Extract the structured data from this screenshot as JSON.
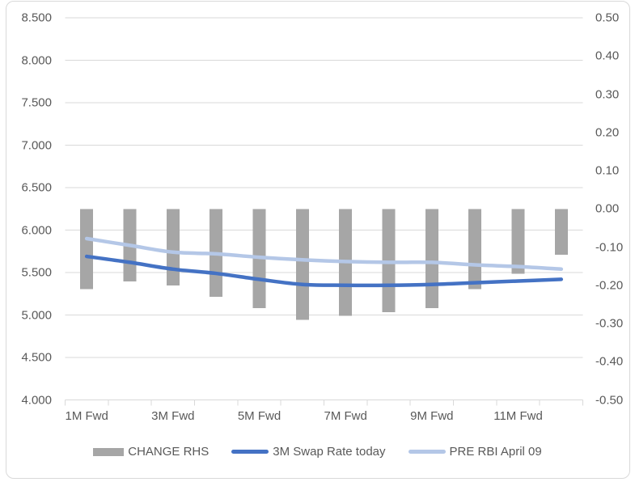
{
  "chart_data": {
    "type": "combo",
    "title": "",
    "n_points": 12,
    "x_tick_labels": [
      "1M Fwd",
      "3M Fwd",
      "5M Fwd",
      "7M Fwd",
      "9M Fwd",
      "11M Fwd"
    ],
    "x_labeled_category_indexes": [
      0,
      2,
      4,
      6,
      8,
      10
    ],
    "left_axis": {
      "ticks": [
        "8.500",
        "8.000",
        "7.500",
        "7.000",
        "6.500",
        "6.000",
        "5.500",
        "5.000",
        "4.500",
        "4.000"
      ],
      "min": 4.0,
      "max": 8.5
    },
    "right_axis": {
      "ticks": [
        "0.50",
        "0.40",
        "0.30",
        "0.20",
        "0.10",
        "0.00",
        "-0.10",
        "-0.20",
        "-0.30",
        "-0.40",
        "-0.50"
      ],
      "min": -0.5,
      "max": 0.5
    },
    "series": [
      {
        "name": "CHANGE RHS",
        "type": "bar",
        "axis": "right",
        "color": "#a6a6a6",
        "values": [
          -0.21,
          -0.19,
          -0.2,
          -0.23,
          -0.26,
          -0.29,
          -0.28,
          -0.27,
          -0.26,
          -0.21,
          -0.17,
          -0.12
        ]
      },
      {
        "name": "3M Swap Rate today",
        "type": "line",
        "axis": "left",
        "color": "#4472c4",
        "values": [
          5.69,
          5.62,
          5.54,
          5.49,
          5.42,
          5.36,
          5.35,
          5.35,
          5.36,
          5.38,
          5.4,
          5.42
        ]
      },
      {
        "name": "PRE RBI April 09",
        "type": "line",
        "axis": "left",
        "color": "#b4c7e7",
        "values": [
          5.9,
          5.82,
          5.74,
          5.72,
          5.68,
          5.65,
          5.63,
          5.62,
          5.62,
          5.59,
          5.57,
          5.54
        ]
      }
    ],
    "legend_position": "bottom",
    "grid": true
  },
  "colors": {
    "background": "#ffffff",
    "frame_border": "#d9d9d9",
    "gridline": "#d9d9d9",
    "axis_text": "#595959"
  }
}
